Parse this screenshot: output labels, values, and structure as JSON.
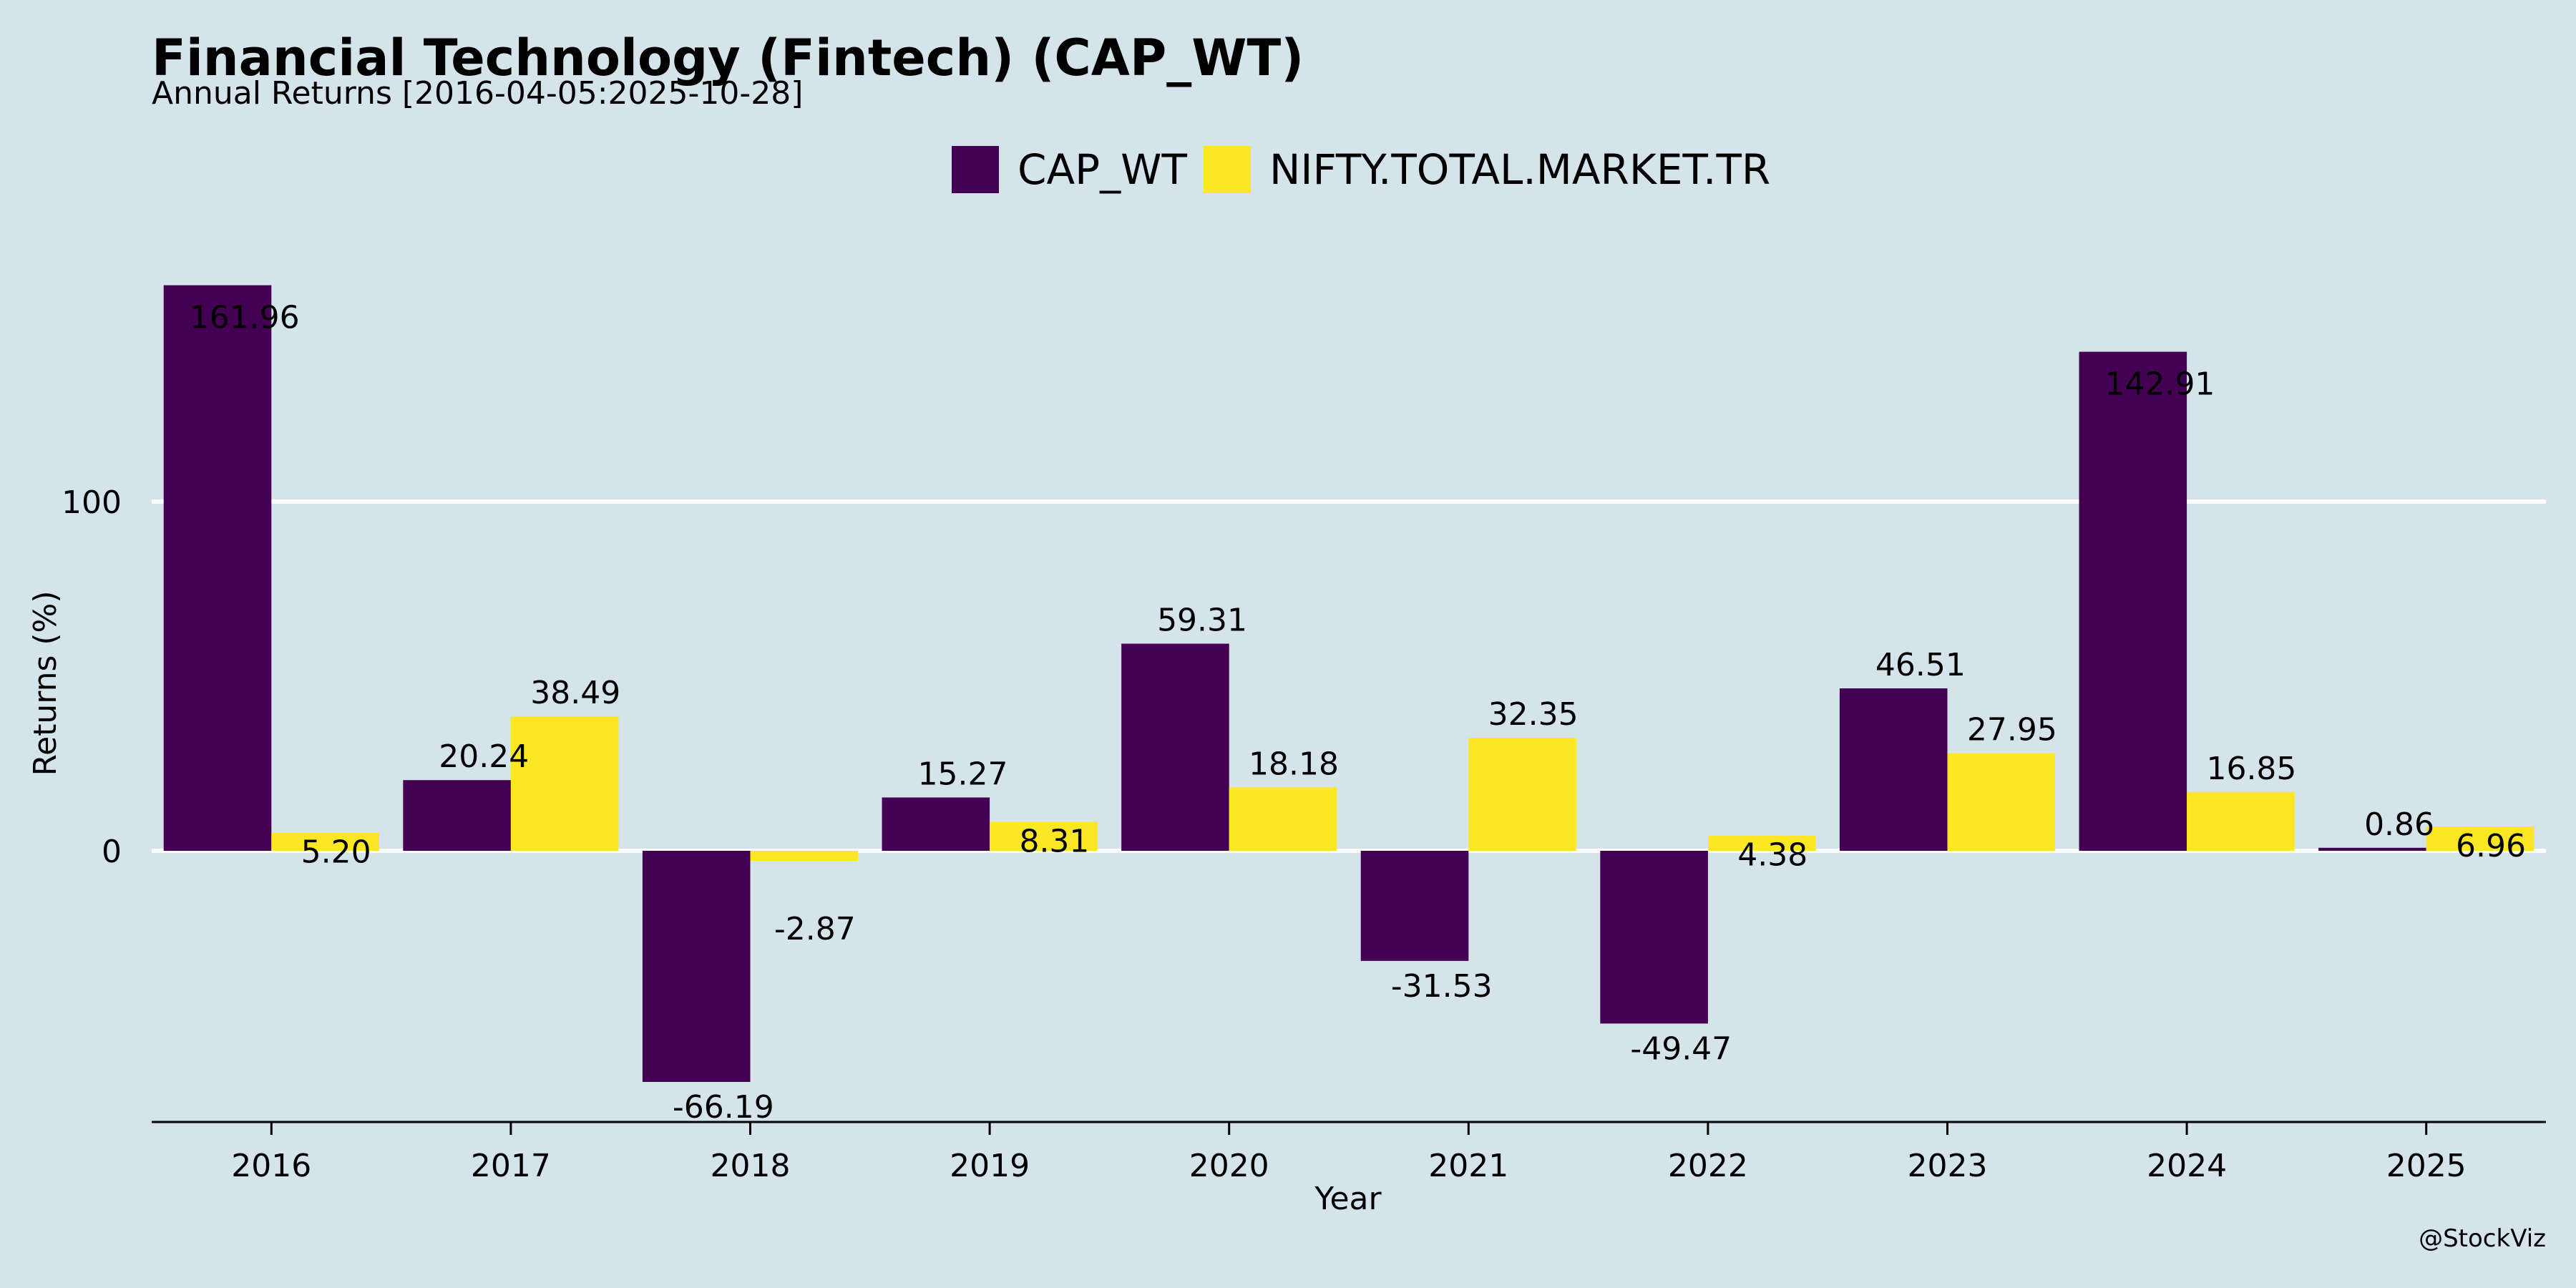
{
  "colors": {
    "background": "#d5e4eb",
    "cap_wt": "#440154",
    "nifty": "#fde725",
    "gridline": "#ffffff",
    "axis": "#000000"
  },
  "chart_data": {
    "type": "bar",
    "title": "Financial Technology (Fintech) (CAP_WT)",
    "subtitle": "Annual Returns [2016-04-05:2025-10-28]",
    "xlabel": "Year",
    "ylabel": "Returns (%)",
    "ylim": [
      -78,
      170
    ],
    "yticks": [
      0,
      100
    ],
    "grid": "horizontal",
    "legend_position": "top-center",
    "categories": [
      "2016",
      "2017",
      "2018",
      "2019",
      "2020",
      "2021",
      "2022",
      "2023",
      "2024",
      "2025"
    ],
    "series": [
      {
        "name": "CAP_WT",
        "values": [
          161.96,
          20.24,
          -66.19,
          15.27,
          59.31,
          -31.53,
          -49.47,
          46.51,
          142.91,
          0.86
        ],
        "labels": [
          "161.96",
          "20.24",
          "-66.19",
          "15.27",
          "59.31",
          "-31.53",
          "-49.47",
          "46.51",
          "142.91",
          "0.86"
        ]
      },
      {
        "name": "NIFTY.TOTAL.MARKET.TR",
        "values": [
          5.2,
          38.49,
          -2.87,
          8.31,
          18.18,
          32.35,
          4.38,
          27.95,
          16.85,
          6.96
        ],
        "labels": [
          "5.20",
          "38.49",
          "-2.87",
          "8.31",
          "18.18",
          "32.35",
          "4.38",
          "27.95",
          "16.85",
          "6.96"
        ]
      }
    ],
    "credit": "@StockViz"
  }
}
